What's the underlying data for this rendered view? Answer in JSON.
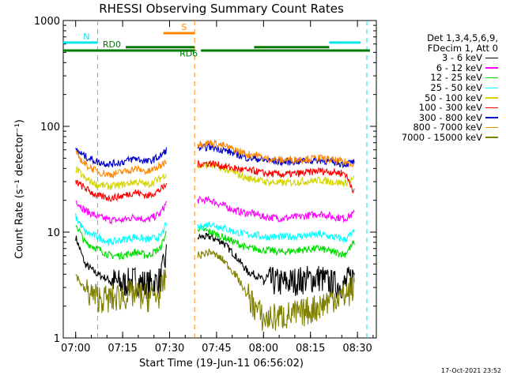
{
  "chart_data": {
    "type": "line",
    "title": "RHESSI Observing Summary Count Rates",
    "xlabel": "Start Time (19-Jun-11 06:56:02)",
    "ylabel": "Count Rate (s⁻¹ detector⁻¹)",
    "y_scale": "log",
    "ylim": [
      1,
      1000
    ],
    "xlim": [
      "06:56:02",
      "08:36:02"
    ],
    "x_ticks": [
      "07:00",
      "07:15",
      "07:30",
      "07:45",
      "08:00",
      "08:15",
      "08:30"
    ],
    "y_ticks": [
      "1",
      "10",
      "100",
      "1000"
    ],
    "legend_header": [
      "Det 1,3,4,5,6,9,",
      "FDecim 1, Att 0"
    ],
    "legend_position": "right",
    "timestamp": "17-Oct-2021 23:52",
    "flags": [
      {
        "label": "N",
        "color": "#00e5ee",
        "level": 620,
        "segments": [
          [
            "06:56",
            "07:07"
          ],
          [
            "08:21",
            "08:31"
          ]
        ]
      },
      {
        "label": "S",
        "color": "#ff8800",
        "level": 760,
        "segments": [
          [
            "07:28",
            "07:38"
          ]
        ]
      },
      {
        "label": "RD0",
        "color": "#007a00",
        "level": 520,
        "segments": [
          [
            "06:56",
            "07:17"
          ],
          [
            "07:17",
            "07:38"
          ],
          [
            "07:40",
            "07:55"
          ],
          [
            "07:55",
            "08:21"
          ],
          [
            "08:21",
            "08:34"
          ]
        ]
      },
      {
        "label": "RD6",
        "color": "#007a00",
        "level": 560,
        "segments": [
          [
            "07:16",
            "07:38"
          ],
          [
            "07:57",
            "08:21"
          ]
        ]
      }
    ],
    "dashed_markers": [
      {
        "color": "#00e5ee",
        "times": [
          "07:07",
          "08:33"
        ]
      },
      {
        "color": "#ff8800",
        "times": [
          "07:38"
        ]
      }
    ],
    "gaps": [
      [
        "07:29",
        "07:39"
      ]
    ],
    "series": [
      {
        "name": "3 - 6 keV",
        "color": "#000000",
        "points": [
          [
            "07:00",
            9
          ],
          [
            "07:03",
            5
          ],
          [
            "07:07",
            4
          ],
          [
            "07:11",
            3.5
          ],
          [
            "07:15",
            3.2
          ],
          [
            "07:19",
            3.5
          ],
          [
            "07:23",
            3.2
          ],
          [
            "07:27",
            3.5
          ],
          [
            "07:29",
            6
          ],
          [
            "07:39",
            9
          ],
          [
            "07:43",
            9
          ],
          [
            "07:47",
            8
          ],
          [
            "07:51",
            6
          ],
          [
            "07:55",
            4.2
          ],
          [
            "07:57",
            4
          ],
          [
            "08:00",
            3.5
          ],
          [
            "08:06",
            3.3
          ],
          [
            "08:12",
            3.5
          ],
          [
            "08:18",
            3.7
          ],
          [
            "08:22",
            3.2
          ],
          [
            "08:26",
            3.2
          ],
          [
            "08:29",
            4
          ]
        ]
      },
      {
        "name": "6 - 12 keV",
        "color": "#ff00ff",
        "points": [
          [
            "07:00",
            20
          ],
          [
            "07:03",
            16
          ],
          [
            "07:07",
            14
          ],
          [
            "07:11",
            13
          ],
          [
            "07:15",
            13
          ],
          [
            "07:19",
            14
          ],
          [
            "07:23",
            13
          ],
          [
            "07:27",
            15
          ],
          [
            "07:29",
            19
          ],
          [
            "07:39",
            20
          ],
          [
            "07:43",
            20
          ],
          [
            "07:47",
            18
          ],
          [
            "07:51",
            16
          ],
          [
            "07:55",
            15
          ],
          [
            "07:57",
            15
          ],
          [
            "08:00",
            14
          ],
          [
            "08:06",
            13.5
          ],
          [
            "08:12",
            14
          ],
          [
            "08:18",
            15
          ],
          [
            "08:22",
            14
          ],
          [
            "08:26",
            13.5
          ],
          [
            "08:29",
            15
          ]
        ]
      },
      {
        "name": "12 - 25 keV",
        "color": "#00dd00",
        "points": [
          [
            "07:00",
            12
          ],
          [
            "07:03",
            8
          ],
          [
            "07:07",
            7
          ],
          [
            "07:11",
            6
          ],
          [
            "07:15",
            6
          ],
          [
            "07:19",
            6.5
          ],
          [
            "07:23",
            6
          ],
          [
            "07:27",
            7
          ],
          [
            "07:29",
            10
          ],
          [
            "07:39",
            11
          ],
          [
            "07:43",
            10
          ],
          [
            "07:47",
            9
          ],
          [
            "07:51",
            8
          ],
          [
            "07:55",
            7
          ],
          [
            "07:57",
            7
          ],
          [
            "08:00",
            6.8
          ],
          [
            "08:06",
            6.5
          ],
          [
            "08:12",
            6.8
          ],
          [
            "08:18",
            7
          ],
          [
            "08:22",
            6.5
          ],
          [
            "08:26",
            6.2
          ],
          [
            "08:29",
            8
          ]
        ]
      },
      {
        "name": "25 - 50 keV",
        "color": "#00ffff",
        "points": [
          [
            "07:00",
            14
          ],
          [
            "07:03",
            10
          ],
          [
            "07:07",
            9
          ],
          [
            "07:11",
            8
          ],
          [
            "07:15",
            8.5
          ],
          [
            "07:19",
            9
          ],
          [
            "07:23",
            8.5
          ],
          [
            "07:27",
            9
          ],
          [
            "07:29",
            12
          ],
          [
            "07:39",
            11
          ],
          [
            "07:43",
            12
          ],
          [
            "07:47",
            11
          ],
          [
            "07:51",
            10
          ],
          [
            "07:55",
            9.5
          ],
          [
            "07:57",
            9.5
          ],
          [
            "08:00",
            9
          ],
          [
            "08:06",
            9
          ],
          [
            "08:12",
            9.2
          ],
          [
            "08:18",
            9.5
          ],
          [
            "08:22",
            9
          ],
          [
            "08:26",
            8.5
          ],
          [
            "08:29",
            10
          ]
        ]
      },
      {
        "name": "50 - 100 keV",
        "color": "#d4d400",
        "points": [
          [
            "07:00",
            40
          ],
          [
            "07:03",
            32
          ],
          [
            "07:07",
            28
          ],
          [
            "07:11",
            27
          ],
          [
            "07:15",
            28
          ],
          [
            "07:19",
            30
          ],
          [
            "07:23",
            28
          ],
          [
            "07:27",
            32
          ],
          [
            "07:29",
            36
          ],
          [
            "07:39",
            42
          ],
          [
            "07:43",
            43
          ],
          [
            "07:47",
            40
          ],
          [
            "07:51",
            36
          ],
          [
            "07:55",
            32
          ],
          [
            "07:57",
            32
          ],
          [
            "08:00",
            30
          ],
          [
            "08:06",
            29
          ],
          [
            "08:12",
            30
          ],
          [
            "08:18",
            31
          ],
          [
            "08:22",
            30
          ],
          [
            "08:26",
            29
          ],
          [
            "08:29",
            32
          ]
        ]
      },
      {
        "name": "100 - 300 keV",
        "color": "#ff0000",
        "points": [
          [
            "07:00",
            30
          ],
          [
            "07:03",
            26
          ],
          [
            "07:07",
            22
          ],
          [
            "07:11",
            21
          ],
          [
            "07:15",
            22
          ],
          [
            "07:19",
            24
          ],
          [
            "07:23",
            22
          ],
          [
            "07:27",
            25
          ],
          [
            "07:29",
            28
          ],
          [
            "07:39",
            44
          ],
          [
            "07:43",
            45
          ],
          [
            "07:47",
            42
          ],
          [
            "07:51",
            40
          ],
          [
            "07:55",
            38
          ],
          [
            "07:57",
            38
          ],
          [
            "08:00",
            36
          ],
          [
            "08:06",
            35
          ],
          [
            "08:12",
            36
          ],
          [
            "08:18",
            38
          ],
          [
            "08:22",
            37
          ],
          [
            "08:26",
            36
          ],
          [
            "08:29",
            24
          ]
        ]
      },
      {
        "name": "300 - 800 keV",
        "color": "#0000cc",
        "points": [
          [
            "07:00",
            60
          ],
          [
            "07:03",
            52
          ],
          [
            "07:07",
            46
          ],
          [
            "07:11",
            44
          ],
          [
            "07:15",
            46
          ],
          [
            "07:19",
            50
          ],
          [
            "07:23",
            46
          ],
          [
            "07:27",
            52
          ],
          [
            "07:29",
            60
          ],
          [
            "07:39",
            62
          ],
          [
            "07:43",
            64
          ],
          [
            "07:47",
            60
          ],
          [
            "07:51",
            55
          ],
          [
            "07:55",
            50
          ],
          [
            "07:57",
            50
          ],
          [
            "08:00",
            48
          ],
          [
            "08:06",
            46
          ],
          [
            "08:12",
            47
          ],
          [
            "08:18",
            48
          ],
          [
            "08:22",
            46
          ],
          [
            "08:26",
            44
          ],
          [
            "08:29",
            46
          ]
        ]
      },
      {
        "name": "800 - 7000 keV",
        "color": "#ff8800",
        "points": [
          [
            "07:00",
            55
          ],
          [
            "07:03",
            44
          ],
          [
            "07:07",
            37
          ],
          [
            "07:11",
            35
          ],
          [
            "07:15",
            37
          ],
          [
            "07:19",
            40
          ],
          [
            "07:23",
            37
          ],
          [
            "07:27",
            42
          ],
          [
            "07:29",
            48
          ],
          [
            "07:39",
            68
          ],
          [
            "07:43",
            70
          ],
          [
            "07:47",
            66
          ],
          [
            "07:51",
            60
          ],
          [
            "07:55",
            54
          ],
          [
            "07:57",
            55
          ],
          [
            "08:00",
            50
          ],
          [
            "08:06",
            48
          ],
          [
            "08:12",
            49
          ],
          [
            "08:18",
            50
          ],
          [
            "08:22",
            48
          ],
          [
            "08:26",
            46
          ],
          [
            "08:29",
            44
          ]
        ]
      },
      {
        "name": "7000 - 15000 keV",
        "color": "#808000",
        "points": [
          [
            "07:00",
            4
          ],
          [
            "07:03",
            2.8
          ],
          [
            "07:07",
            2.4
          ],
          [
            "07:11",
            2.3
          ],
          [
            "07:15",
            2.5
          ],
          [
            "07:19",
            2.6
          ],
          [
            "07:23",
            2.4
          ],
          [
            "07:27",
            2.6
          ],
          [
            "07:29",
            4
          ],
          [
            "07:39",
            6
          ],
          [
            "07:43",
            6.5
          ],
          [
            "07:47",
            5.5
          ],
          [
            "07:51",
            4
          ],
          [
            "07:55",
            2.5
          ],
          [
            "07:57",
            2
          ],
          [
            "08:00",
            1.5
          ],
          [
            "08:06",
            1.6
          ],
          [
            "08:12",
            1.7
          ],
          [
            "08:18",
            2
          ],
          [
            "08:22",
            2.4
          ],
          [
            "08:26",
            2.5
          ],
          [
            "08:29",
            3
          ]
        ]
      }
    ]
  }
}
